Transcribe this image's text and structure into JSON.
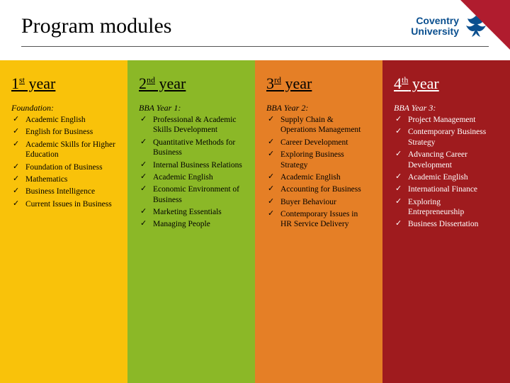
{
  "title": "Program modules",
  "logo": {
    "line1": "Coventry",
    "line2": "University"
  },
  "colors": {
    "c1": "#f9c20a",
    "c2": "#8bb827",
    "c3": "#e57f26",
    "c4": "#9f1b1e",
    "corner": "#b01c2e",
    "logo_text": "#0a4f8f"
  },
  "columns": [
    {
      "year_num": "1",
      "year_suffix": "st",
      "year_word": "year",
      "subhead": "Foundation:",
      "items": [
        "Academic English",
        "English for Business",
        "Academic Skills for Higher Education",
        "Foundation of Business",
        "Mathematics",
        "Business Intelligence",
        "Current Issues in Business"
      ]
    },
    {
      "year_num": "2",
      "year_suffix": "nd",
      "year_word": "year",
      "subhead": "BBA Year 1:",
      "items": [
        "Professional & Academic Skills Development",
        "Quantitative Methods for Business",
        "Internal Business Relations",
        "Academic English",
        "Economic Environment of Business",
        "Marketing Essentials",
        "Managing People"
      ]
    },
    {
      "year_num": "3",
      "year_suffix": "rd",
      "year_word": "year",
      "subhead": "BBA Year 2:",
      "items": [
        "Supply Chain & Operations Management",
        "Career Development",
        "Exploring Business Strategy",
        "Academic English",
        "Accounting for Business",
        "Buyer Behaviour",
        "Contemporary Issues in HR Service Delivery"
      ]
    },
    {
      "year_num": "4",
      "year_suffix": "th",
      "year_word": "year",
      "subhead": "BBA Year 3:",
      "items": [
        "Project Management",
        "Contemporary Business Strategy",
        "Advancing Career Development",
        "Academic English",
        "International Finance",
        "Exploring Entrepreneurship",
        "Business Dissertation"
      ]
    }
  ]
}
